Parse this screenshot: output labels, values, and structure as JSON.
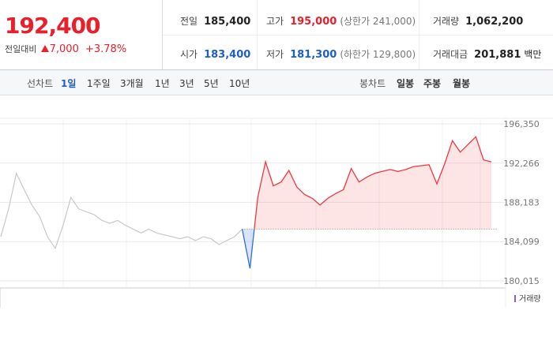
{
  "header": {
    "price": "192,400",
    "change_label": "전일대비",
    "change": "7,000",
    "change_pct": "+3.78%",
    "stats": [
      [
        {
          "label": "전일",
          "value": "185,400"
        },
        {
          "label": "고가",
          "value": "195,000",
          "extra": "(상한가 241,000)"
        },
        {
          "label": "거래량",
          "value": "1,062,200"
        }
      ],
      [
        {
          "label": "시가",
          "value": "183,400"
        },
        {
          "label": "저가",
          "value": "181,300",
          "extra": "(하한가 129,800)"
        },
        {
          "label": "거래대금",
          "value": "201,881",
          "unit": "백만"
        }
      ]
    ]
  },
  "tabs": {
    "line_label": "선차트",
    "periods": [
      "1일",
      "1주일",
      "3개월",
      "1년",
      "3년",
      "5년",
      "10년"
    ],
    "selected": 0,
    "candle_label": "봉차트",
    "candles": [
      "일봉",
      "주봉",
      "월봉"
    ]
  },
  "chart_data": {
    "type": "line",
    "baseline": 185400,
    "categories": [
      null,
      null,
      null,
      null,
      null,
      null,
      null,
      null,
      null,
      null,
      null,
      null,
      null,
      null,
      null,
      null,
      null,
      null,
      null,
      null,
      null,
      null,
      null,
      null,
      null,
      null,
      null,
      null,
      null,
      null,
      null,
      null,
      null,
      null,
      null,
      null,
      null,
      null,
      null,
      null,
      null,
      null,
      null,
      null,
      null,
      null,
      null,
      null,
      null,
      null,
      null,
      null,
      null,
      null,
      null,
      null,
      null,
      null,
      null,
      null,
      null,
      null,
      null,
      null
    ],
    "series": [
      {
        "color": "#c8c8c8",
        "values": [
          184600,
          187500,
          191200,
          189500,
          187900,
          186700,
          184600,
          183400,
          185800,
          188700,
          187500,
          187200,
          186900,
          186300,
          186000,
          186300,
          185800,
          185400,
          185000,
          185400,
          185000,
          184800,
          184600,
          184400,
          184600,
          184200,
          184600,
          184400,
          183800,
          184200,
          184600,
          185400,
          null,
          null,
          null,
          null,
          null,
          null,
          null,
          null,
          null,
          null,
          null,
          null,
          null,
          null,
          null,
          null,
          null,
          null,
          null,
          null,
          null,
          null,
          null,
          null,
          null,
          null,
          null,
          null,
          null,
          null,
          null,
          null
        ]
      },
      {
        "color": "#f0363f",
        "below_color": "#2f6fd6",
        "values": [
          null,
          null,
          null,
          null,
          null,
          null,
          null,
          null,
          null,
          null,
          null,
          null,
          null,
          null,
          null,
          null,
          null,
          null,
          null,
          null,
          null,
          null,
          null,
          null,
          null,
          null,
          null,
          null,
          null,
          null,
          null,
          185400,
          181300,
          188700,
          192400,
          189900,
          190300,
          191500,
          189800,
          189000,
          188600,
          187900,
          188600,
          189100,
          189500,
          191700,
          190300,
          190800,
          191200,
          191400,
          191600,
          191400,
          191600,
          191900,
          192000,
          192100,
          190100,
          192200,
          194600,
          193400,
          194200,
          195000,
          192600,
          192400
        ]
      }
    ],
    "ylim": [
      180015,
      196350
    ],
    "yticks": [
      {
        "value": 180015,
        "label": "180,015"
      },
      {
        "value": 184099,
        "label": "184,099"
      },
      {
        "value": 188183,
        "label": "188,183"
      },
      {
        "value": 192266,
        "label": "192,266"
      },
      {
        "value": 196350,
        "label": "196,350"
      }
    ],
    "grid": true,
    "volume_label": "거래량"
  }
}
